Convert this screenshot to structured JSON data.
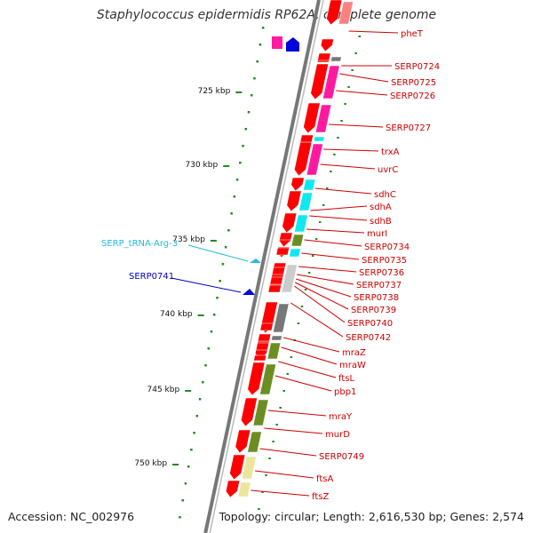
{
  "title": "Staphylococcus epidermidis RP62A, complete genome",
  "accession": "Accession: NC_002976",
  "topology": "Topology: circular; Length: 2,616,530 bp; Genes: 2,574",
  "colors": {
    "backbone": "#888888",
    "forward": "#ff0000",
    "reverse_arrow": "#ff0000",
    "cog_magenta": "#ff1aa0",
    "cog_cyan": "#10e8f0",
    "cog_olive": "#6b8e23",
    "cog_khaki": "#ece59c",
    "cog_gray": "#777777",
    "cog_light_gray": "#cccccc",
    "label_red": "#cc0000",
    "label_cyan": "#22bbdd",
    "label_blue": "#0000cc",
    "tick_green": "#228b22"
  },
  "kbp_ticks": [
    {
      "label": "725 kbp"
    },
    {
      "label": "730 kbp"
    },
    {
      "label": "735 kbp"
    },
    {
      "label": "740 kbp"
    },
    {
      "label": "745 kbp"
    },
    {
      "label": "750 kbp"
    }
  ],
  "left_labels": [
    {
      "text": "SERP_tRNA-Arg-3",
      "color": "cyan"
    },
    {
      "text": "SERP0741",
      "color": "blue"
    }
  ],
  "right_labels": [
    "pheT",
    "SERP0724",
    "SERP0725",
    "SERP0726",
    "SERP0727",
    "trxA",
    "uvrC",
    "sdhC",
    "sdhA",
    "sdhB",
    "murI",
    "SERP0734",
    "SERP0735",
    "SERP0736",
    "SERP0737",
    "SERP0738",
    "SERP0739",
    "SERP0740",
    "SERP0742",
    "mraZ",
    "mraW",
    "ftsL",
    "pbp1",
    "mraY",
    "murD",
    "SERP0749",
    "ftsA",
    "ftsZ"
  ]
}
